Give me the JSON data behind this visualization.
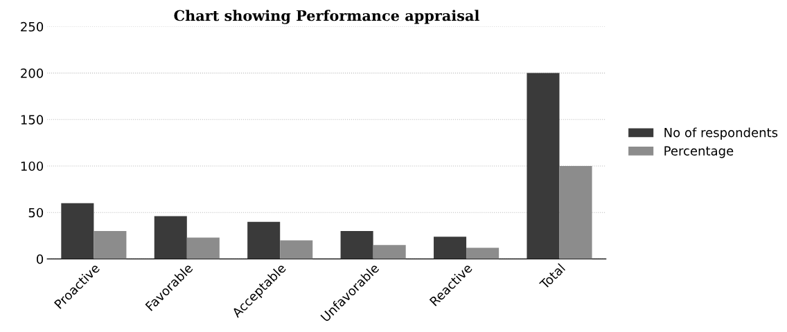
{
  "chart_data": {
    "type": "bar",
    "title": "Chart showing Performance appraisal",
    "categories": [
      "Proactive",
      "Favorable",
      "Acceptable",
      "Unfavorable",
      "Reactive",
      "Total"
    ],
    "series": [
      {
        "name": "No of respondents",
        "color": "#3a3a3a",
        "values": [
          60,
          46,
          40,
          30,
          24,
          200
        ]
      },
      {
        "name": "Percentage",
        "color": "#8c8c8c",
        "values": [
          30,
          23,
          20,
          15,
          12,
          100
        ]
      }
    ],
    "ylim": [
      0,
      250
    ],
    "yticks": [
      0,
      50,
      100,
      150,
      200,
      250
    ],
    "grid": "y",
    "legend": "right"
  }
}
